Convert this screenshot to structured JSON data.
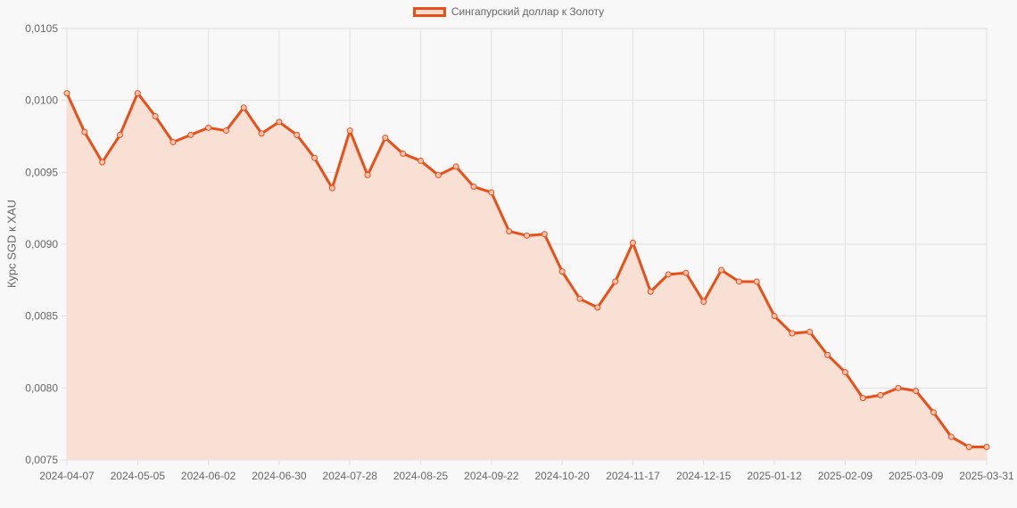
{
  "legend": {
    "label": "Сингапурский доллар к Золоту",
    "swatch_border": "#e8501a",
    "swatch_fill": "#f9dbd0"
  },
  "chart_data": {
    "type": "line",
    "title": "",
    "xlabel": "",
    "ylabel": "Курс SGD к XAU",
    "ylim": [
      0.0075,
      0.0105
    ],
    "y_ticks": [
      "0,0075",
      "0,0080",
      "0,0085",
      "0,0090",
      "0,0095",
      "0,0100",
      "0,0105"
    ],
    "x_tick_labels": [
      "2024-04-07",
      "2024-05-05",
      "2024-06-02",
      "2024-06-30",
      "2024-07-28",
      "2024-08-25",
      "2024-09-22",
      "2024-10-20",
      "2024-11-17",
      "2024-12-15",
      "2025-01-12",
      "2025-02-09",
      "2025-03-09",
      "2025-03-31"
    ],
    "grid": true,
    "legend_position": "top",
    "series": [
      {
        "name": "Сингапурский доллар к Золоту",
        "color": "#e8501a",
        "fill": "#f9e0d5",
        "x": [
          "2024-04-07",
          "2024-04-14",
          "2024-04-21",
          "2024-04-28",
          "2024-05-05",
          "2024-05-12",
          "2024-05-19",
          "2024-05-26",
          "2024-06-02",
          "2024-06-09",
          "2024-06-16",
          "2024-06-23",
          "2024-06-30",
          "2024-07-07",
          "2024-07-14",
          "2024-07-21",
          "2024-07-28",
          "2024-08-04",
          "2024-08-11",
          "2024-08-18",
          "2024-08-25",
          "2024-09-01",
          "2024-09-08",
          "2024-09-15",
          "2024-09-22",
          "2024-09-29",
          "2024-10-06",
          "2024-10-13",
          "2024-10-20",
          "2024-10-27",
          "2024-11-03",
          "2024-11-10",
          "2024-11-17",
          "2024-11-24",
          "2024-12-01",
          "2024-12-08",
          "2024-12-15",
          "2024-12-22",
          "2024-12-29",
          "2025-01-05",
          "2025-01-12",
          "2025-01-19",
          "2025-01-26",
          "2025-02-02",
          "2025-02-09",
          "2025-02-16",
          "2025-02-23",
          "2025-03-02",
          "2025-03-09",
          "2025-03-16",
          "2025-03-23",
          "2025-03-30",
          "2025-03-31"
        ],
        "values": [
          0.01005,
          0.00978,
          0.00957,
          0.00976,
          0.01005,
          0.00989,
          0.00971,
          0.00976,
          0.00981,
          0.00979,
          0.00995,
          0.00977,
          0.00985,
          0.00976,
          0.0096,
          0.00939,
          0.00979,
          0.00948,
          0.00974,
          0.00963,
          0.00958,
          0.00948,
          0.00954,
          0.0094,
          0.00936,
          0.00909,
          0.00906,
          0.00907,
          0.00881,
          0.00862,
          0.00856,
          0.00874,
          0.00901,
          0.00867,
          0.00879,
          0.0088,
          0.0086,
          0.00882,
          0.00874,
          0.00874,
          0.0085,
          0.00838,
          0.00839,
          0.00823,
          0.00811,
          0.00793,
          0.00795,
          0.008,
          0.00798,
          0.00783,
          0.00766,
          0.00759,
          0.00759
        ]
      }
    ]
  }
}
